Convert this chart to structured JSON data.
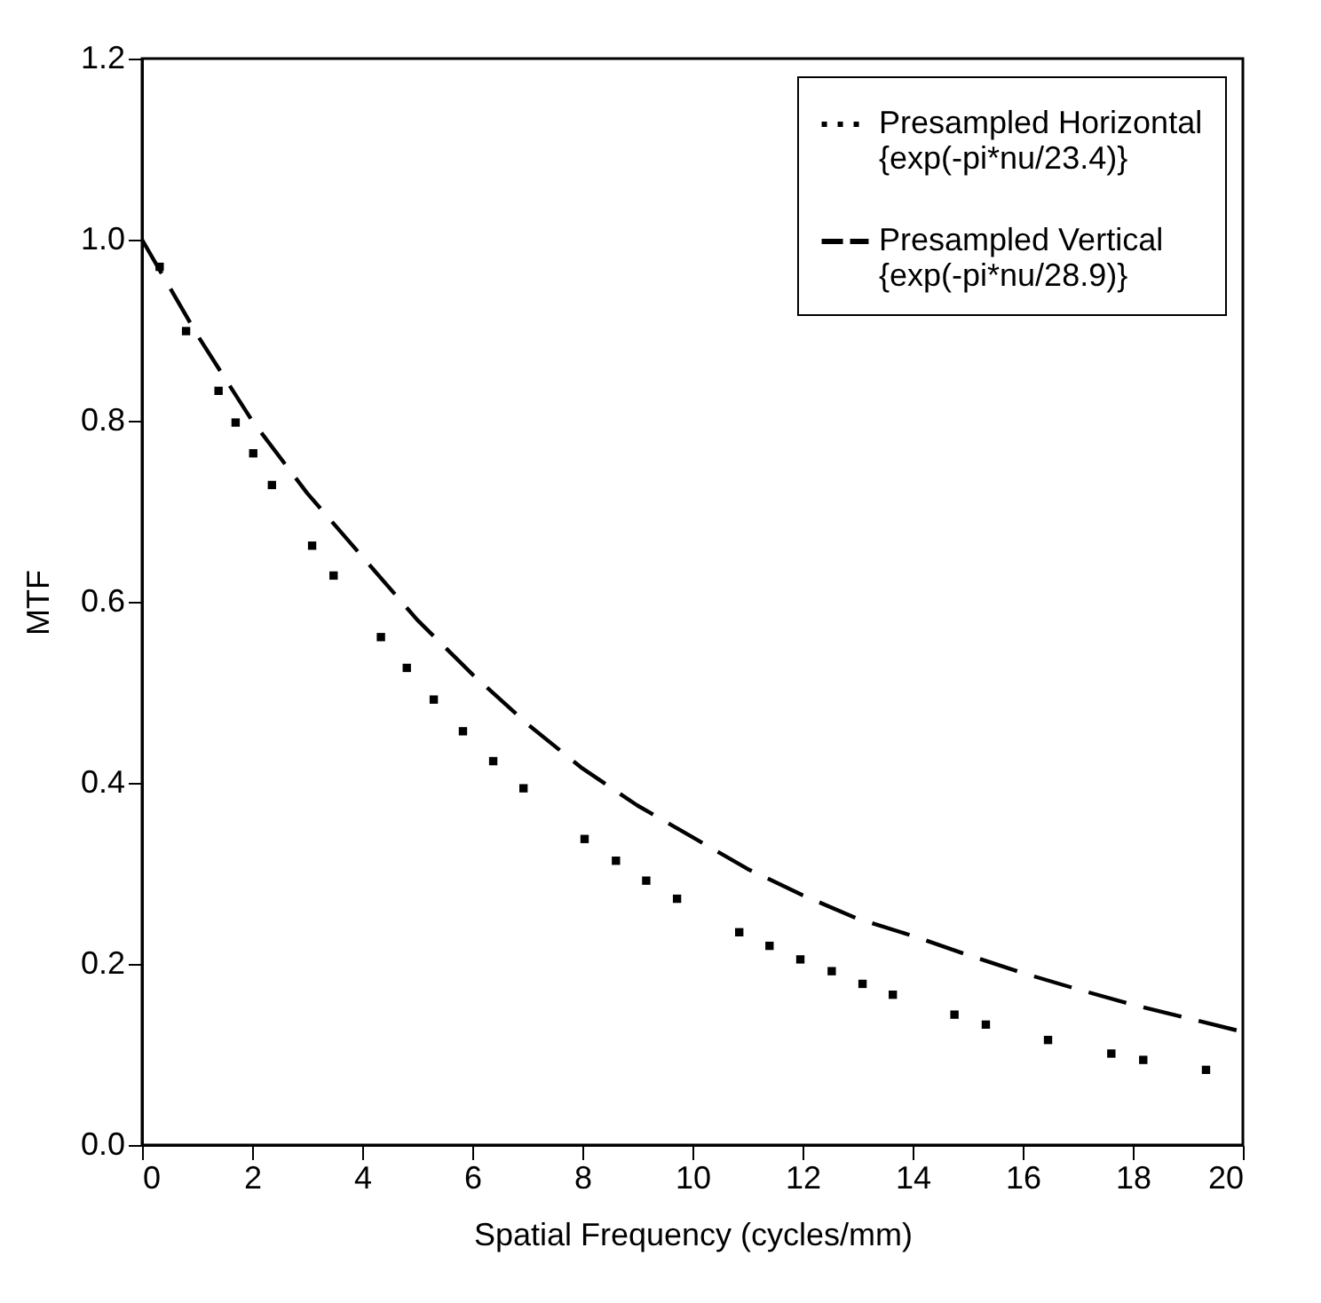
{
  "chart_data": {
    "type": "line",
    "xlabel": "Spatial Frequency (cycles/mm)",
    "ylabel": "MTF",
    "xlim": [
      0,
      20
    ],
    "ylim": [
      0,
      1.2
    ],
    "xticks": [
      0,
      2,
      4,
      6,
      8,
      10,
      12,
      14,
      16,
      18,
      20
    ],
    "yticks": [
      {
        "value": 0,
        "label": "0.0"
      },
      {
        "value": 0.2,
        "label": "0.2"
      },
      {
        "value": 0.4,
        "label": "0.4"
      },
      {
        "value": 0.6,
        "label": "0.6"
      },
      {
        "value": 0.8,
        "label": "0.8"
      },
      {
        "value": 1,
        "label": "1.0"
      },
      {
        "value": 1.2,
        "label": "1.2"
      }
    ],
    "legend": "top right",
    "series": [
      {
        "name": "Presampled Horizontal\n{exp(-pi*nu/23.4)}",
        "type": "scatter",
        "marker": "square",
        "color": "#000000",
        "x": [
          0.32,
          0.8,
          1.39,
          1.7,
          2.02,
          2.36,
          3.09,
          3.48,
          4.34,
          4.81,
          5.3,
          5.83,
          6.38,
          6.93,
          8.04,
          8.61,
          9.16,
          9.72,
          10.85,
          11.4,
          11.96,
          12.53,
          13.09,
          13.64,
          14.76,
          15.33,
          16.46,
          17.61,
          18.19,
          19.33
        ],
        "values": [
          0.97,
          0.899,
          0.833,
          0.798,
          0.764,
          0.729,
          0.662,
          0.629,
          0.561,
          0.527,
          0.492,
          0.457,
          0.424,
          0.394,
          0.338,
          0.314,
          0.292,
          0.272,
          0.235,
          0.22,
          0.205,
          0.192,
          0.178,
          0.166,
          0.144,
          0.133,
          0.116,
          0.101,
          0.094,
          0.083
        ]
      },
      {
        "name": "Presampled Vertical\n{exp(-pi*nu/28.9)}",
        "line_style": "dashed",
        "color": "#000000",
        "x": [
          0,
          1,
          2,
          3,
          4,
          5,
          6,
          7,
          8,
          9,
          10,
          11,
          12,
          13,
          14,
          15,
          16,
          17,
          18,
          19,
          20
        ],
        "values": [
          1.0,
          0.895,
          0.8,
          0.72,
          0.65,
          0.58,
          0.52,
          0.465,
          0.416,
          0.375,
          0.34,
          0.305,
          0.276,
          0.25,
          0.231,
          0.21,
          0.19,
          0.172,
          0.155,
          0.14,
          0.125
        ]
      }
    ]
  }
}
